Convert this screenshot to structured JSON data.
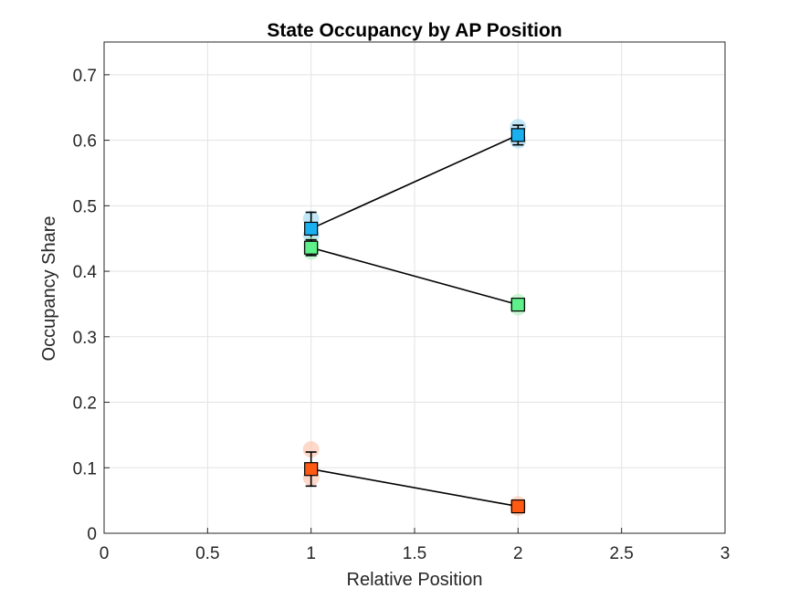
{
  "chart_data": {
    "type": "scatter",
    "title": "State Occupancy by AP Position",
    "xlabel": "Relative Position",
    "ylabel": "Occupancy Share",
    "xlim": [
      0,
      3
    ],
    "ylim": [
      0,
      0.75
    ],
    "xticks": [
      0,
      0.5,
      1,
      1.5,
      2,
      2.5,
      3
    ],
    "xtick_labels": [
      "0",
      "0.5",
      "1",
      "1.5",
      "2",
      "2.5",
      "3"
    ],
    "yticks": [
      0,
      0.1,
      0.2,
      0.3,
      0.4,
      0.5,
      0.6,
      0.7
    ],
    "ytick_labels": [
      "0",
      "0.1",
      "0.2",
      "0.3",
      "0.4",
      "0.5",
      "0.6",
      "0.7"
    ],
    "grid": true,
    "series": [
      {
        "color": "#1ab0f0",
        "light_color": "#a8def5",
        "x": [
          1,
          2
        ],
        "y": [
          0.465,
          0.608
        ],
        "err": [
          0.025,
          0.015
        ],
        "individual_points": [
          [
            1,
            0.48
          ],
          [
            1,
            0.455
          ],
          [
            2,
            0.62
          ],
          [
            2,
            0.6
          ]
        ]
      },
      {
        "color": "#5ef08a",
        "light_color": "#b8f5c8",
        "x": [
          1,
          2
        ],
        "y": [
          0.436,
          0.349
        ],
        "err": [
          0.012,
          0.006
        ],
        "individual_points": [
          [
            1,
            0.43
          ],
          [
            1,
            0.44
          ],
          [
            2,
            0.345
          ],
          [
            2,
            0.353
          ]
        ]
      },
      {
        "color": "#ff5a14",
        "light_color": "#fdc8b0",
        "x": [
          1,
          2
        ],
        "y": [
          0.098,
          0.041
        ],
        "err": [
          0.026,
          0.004
        ],
        "individual_points": [
          [
            1,
            0.128
          ],
          [
            1,
            0.085
          ],
          [
            2,
            0.044
          ],
          [
            2,
            0.039
          ]
        ]
      }
    ]
  }
}
